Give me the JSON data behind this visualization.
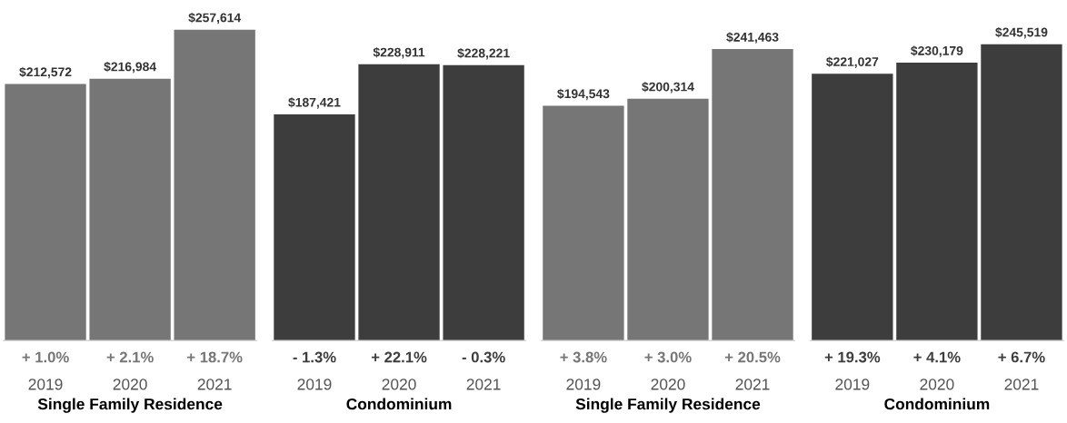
{
  "chart_data": [
    {
      "type": "bar",
      "xlabel": "Single Family Residence",
      "categories": [
        "2019",
        "2020",
        "2021"
      ],
      "values": [
        212572,
        216984,
        257614
      ],
      "value_labels": [
        "$212,572",
        "$216,984",
        "$257,614"
      ],
      "color": "#767676",
      "annotations": [
        "+ 1.0%",
        "+ 2.1%",
        "+ 18.7%"
      ],
      "grid": false,
      "legend": false
    },
    {
      "type": "bar",
      "xlabel": "Condominium",
      "categories": [
        "2019",
        "2020",
        "2021"
      ],
      "values": [
        187421,
        228911,
        228221
      ],
      "value_labels": [
        "$187,421",
        "$228,911",
        "$228,221"
      ],
      "color": "#3d3d3d",
      "annotations": [
        "- 1.3%",
        "+ 22.1%",
        "- 0.3%"
      ],
      "grid": false,
      "legend": false
    },
    {
      "type": "bar",
      "xlabel": "Single Family Residence",
      "categories": [
        "2019",
        "2020",
        "2021"
      ],
      "values": [
        194543,
        200314,
        241463
      ],
      "value_labels": [
        "$194,543",
        "$200,314",
        "$241,463"
      ],
      "color": "#767676",
      "annotations": [
        "+ 3.8%",
        "+ 3.0%",
        "+ 20.5%"
      ],
      "grid": false,
      "legend": false
    },
    {
      "type": "bar",
      "xlabel": "Condominium",
      "categories": [
        "2019",
        "2020",
        "2021"
      ],
      "values": [
        221027,
        230179,
        245519
      ],
      "value_labels": [
        "$221,027",
        "$230,179",
        "$245,519"
      ],
      "color": "#3d3d3d",
      "annotations": [
        "+ 19.3%",
        "+ 4.1%",
        "+ 6.7%"
      ],
      "grid": false,
      "legend": false
    }
  ]
}
